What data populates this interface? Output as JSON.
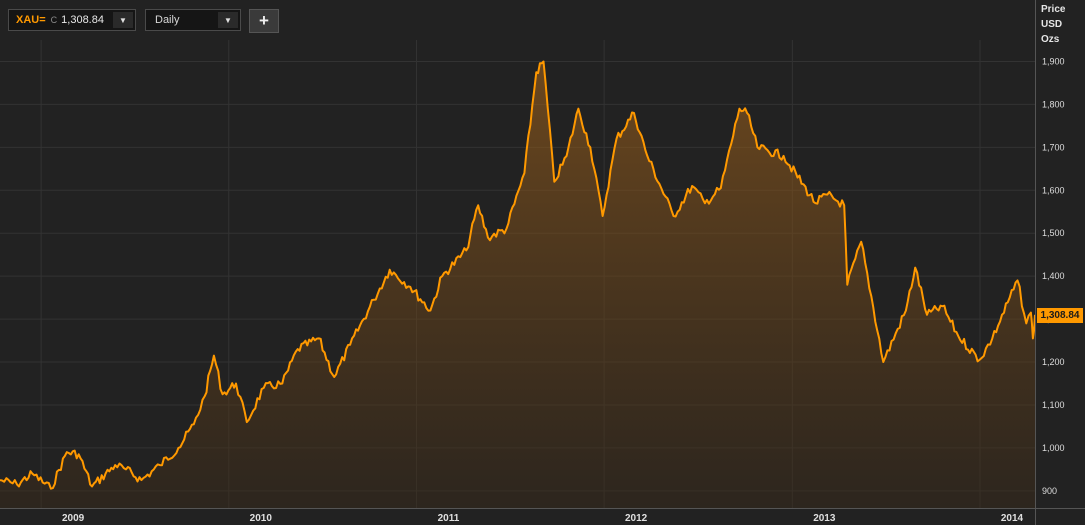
{
  "toolbar": {
    "symbol": {
      "ticker": "XAU=",
      "flag": "C",
      "price": "1,308.84"
    },
    "interval": "Daily",
    "add_label": "+"
  },
  "axis_header": {
    "line1": "Price",
    "line2": "USD",
    "line3": "Ozs"
  },
  "last_price_label": "1,308.84",
  "colors": {
    "line": "#ff9900",
    "background": "#222222",
    "grid": "#333333",
    "last_price_bg": "#ff9900"
  },
  "chart_data": {
    "type": "area",
    "title": "",
    "xlabel": "",
    "ylabel": "Price USD Ozs",
    "y_ticks": [
      "900",
      "1,000",
      "1,100",
      "1,200",
      "1,300",
      "1,400",
      "1,500",
      "1,600",
      "1,700",
      "1,800",
      "1,900"
    ],
    "ylim": [
      860,
      1950
    ],
    "x_ticks": [
      "2009",
      "2010",
      "2011",
      "2012",
      "2013",
      "2014"
    ],
    "xlim": [
      "2008-10-13",
      "2014-04-18"
    ],
    "grid": true,
    "series": [
      {
        "color": "#ff9900",
        "points": [
          [
            "2008-10-13",
            925
          ],
          [
            "2008-11-15",
            915
          ],
          [
            "2008-12-15",
            940
          ],
          [
            "2009-01-20",
            905
          ],
          [
            "2009-02-20",
            990
          ],
          [
            "2009-03-15",
            985
          ],
          [
            "2009-04-10",
            910
          ],
          [
            "2009-05-25",
            960
          ],
          [
            "2009-06-15",
            950
          ],
          [
            "2009-07-15",
            925
          ],
          [
            "2009-08-20",
            960
          ],
          [
            "2009-09-25",
            1000
          ],
          [
            "2009-10-25",
            1055
          ],
          [
            "2009-11-15",
            1120
          ],
          [
            "2009-12-03",
            1215
          ],
          [
            "2009-12-20",
            1125
          ],
          [
            "2010-01-15",
            1150
          ],
          [
            "2010-02-05",
            1060
          ],
          [
            "2010-03-10",
            1140
          ],
          [
            "2010-04-15",
            1150
          ],
          [
            "2010-05-15",
            1230
          ],
          [
            "2010-06-25",
            1255
          ],
          [
            "2010-07-25",
            1165
          ],
          [
            "2010-08-25",
            1240
          ],
          [
            "2010-10-10",
            1345
          ],
          [
            "2010-11-10",
            1415
          ],
          [
            "2010-12-20",
            1375
          ],
          [
            "2011-01-28",
            1320
          ],
          [
            "2011-02-20",
            1400
          ],
          [
            "2011-04-08",
            1460
          ],
          [
            "2011-05-01",
            1565
          ],
          [
            "2011-05-20",
            1490
          ],
          [
            "2011-06-25",
            1510
          ],
          [
            "2011-07-30",
            1640
          ],
          [
            "2011-08-22",
            1875
          ],
          [
            "2011-09-05",
            1900
          ],
          [
            "2011-09-26",
            1620
          ],
          [
            "2011-10-20",
            1680
          ],
          [
            "2011-11-12",
            1790
          ],
          [
            "2011-12-05",
            1700
          ],
          [
            "2011-12-29",
            1540
          ],
          [
            "2012-01-25",
            1720
          ],
          [
            "2012-02-28",
            1780
          ],
          [
            "2012-03-25",
            1680
          ],
          [
            "2012-05-15",
            1540
          ],
          [
            "2012-06-20",
            1610
          ],
          [
            "2012-07-15",
            1570
          ],
          [
            "2012-08-15",
            1605
          ],
          [
            "2012-09-20",
            1790
          ],
          [
            "2012-10-05",
            1780
          ],
          [
            "2012-10-25",
            1700
          ],
          [
            "2012-12-15",
            1680
          ],
          [
            "2013-02-15",
            1570
          ],
          [
            "2013-03-10",
            1590
          ],
          [
            "2013-04-12",
            1565
          ],
          [
            "2013-04-18",
            1380
          ],
          [
            "2013-05-15",
            1480
          ],
          [
            "2013-06-27",
            1200
          ],
          [
            "2013-08-10",
            1320
          ],
          [
            "2013-08-28",
            1420
          ],
          [
            "2013-09-20",
            1310
          ],
          [
            "2013-10-20",
            1330
          ],
          [
            "2013-11-20",
            1260
          ],
          [
            "2013-12-31",
            1205
          ],
          [
            "2014-01-25",
            1255
          ],
          [
            "2014-03-15",
            1390
          ],
          [
            "2014-04-01",
            1290
          ],
          [
            "2014-04-10",
            1315
          ],
          [
            "2014-04-14",
            1255
          ],
          [
            "2014-04-18",
            1310
          ]
        ]
      }
    ],
    "last_value": 1308.84
  }
}
